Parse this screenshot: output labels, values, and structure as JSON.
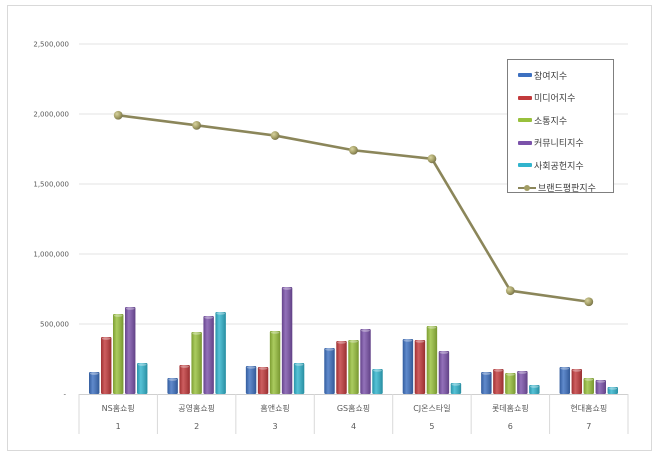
{
  "chart_data": {
    "type": "bar+line",
    "title": "",
    "xlabel": "",
    "ylabel": "",
    "ylim": [
      0,
      2500000
    ],
    "yticks": [
      {
        "value": 0,
        "label": "-"
      },
      {
        "value": 500000,
        "label": "500,000"
      },
      {
        "value": 1000000,
        "label": "1,000,000"
      },
      {
        "value": 1500000,
        "label": "1,500,000"
      },
      {
        "value": 2000000,
        "label": "2,000,000"
      },
      {
        "value": 2500000,
        "label": "2,500,000"
      }
    ],
    "grid": true,
    "legend_position": "upper-right-inside",
    "categories": [
      "NS홈쇼핑",
      "공영홈쇼핑",
      "홈앤쇼핑",
      "GS홈쇼핑",
      "CJ온스타일",
      "롯데홈쇼핑",
      "현대홈쇼핑"
    ],
    "ranks": [
      "1",
      "2",
      "3",
      "4",
      "5",
      "6",
      "7"
    ],
    "series": [
      {
        "name": "참여지수",
        "type": "bar",
        "color": "#3d70c0",
        "values": [
          157000,
          114000,
          200000,
          329000,
          393000,
          157000,
          193000
        ]
      },
      {
        "name": "미디어지수",
        "type": "bar",
        "color": "#c23a3c",
        "values": [
          407000,
          207000,
          193000,
          379000,
          386000,
          179000,
          179000
        ]
      },
      {
        "name": "소통지수",
        "type": "bar",
        "color": "#98c03c",
        "values": [
          571000,
          443000,
          450000,
          386000,
          486000,
          150000,
          114000
        ]
      },
      {
        "name": "커뮤니티지수",
        "type": "bar",
        "color": "#7b52aa",
        "values": [
          621000,
          557000,
          764000,
          464000,
          307000,
          164000,
          100000
        ]
      },
      {
        "name": "사회공헌지수",
        "type": "bar",
        "color": "#31b4cd",
        "values": [
          221000,
          586000,
          221000,
          179000,
          79000,
          64000,
          50000
        ]
      },
      {
        "name": "브랜드평판지수",
        "type": "line",
        "color": "#8b865a",
        "values": [
          1991000,
          1919000,
          1846000,
          1741000,
          1680000,
          738000,
          659000
        ]
      }
    ]
  }
}
